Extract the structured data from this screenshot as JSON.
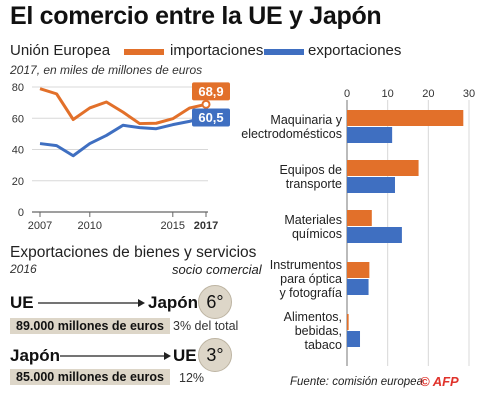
{
  "title": "El comercio entre la UE y Japón",
  "legend": {
    "region": "Unión Europea",
    "imports_label": "importaciones",
    "exports_label": "exportaciones",
    "imports_color": "#e2702a",
    "exports_color": "#3f6fc1"
  },
  "line_subtitle": "2017, en miles de millones de euros",
  "section": {
    "title": "Exportaciones de bienes y servicios",
    "year": "2016",
    "partner_header": "socio comercial"
  },
  "trade_flows": [
    {
      "from": "UE",
      "to": "Japón",
      "rank": "6°",
      "amount": "89.000 millones de euros",
      "share": "3% del total"
    },
    {
      "from": "Japón",
      "to": "UE",
      "rank": "3°",
      "amount": "85.000 millones de euros",
      "share": "12%"
    }
  ],
  "source": "Fuente: comisión europea",
  "logo": "© AFP",
  "chart_data": [
    {
      "type": "line",
      "x": [
        2007,
        2008,
        2009,
        2010,
        2011,
        2012,
        2013,
        2014,
        2015,
        2016,
        2017
      ],
      "xticks": [
        "2007",
        "2010",
        "2015",
        "2017"
      ],
      "yticks": [
        "0",
        "20",
        "40",
        "60",
        "80"
      ],
      "ylim": [
        0,
        80
      ],
      "series": [
        {
          "name": "importaciones",
          "color": "#e2702a",
          "values": [
            78.9,
            75.6,
            59.2,
            66.6,
            70.4,
            63.9,
            56.6,
            56.8,
            59.7,
            66.5,
            68.9
          ],
          "end_label": "68,9"
        },
        {
          "name": "exportaciones",
          "color": "#3f6fc1",
          "values": [
            43.8,
            42.5,
            36.0,
            43.8,
            49.0,
            55.5,
            54.0,
            53.3,
            55.9,
            58.0,
            60.5
          ],
          "end_label": "60,5"
        }
      ]
    },
    {
      "type": "bar",
      "orientation": "horizontal",
      "xticks": [
        "0",
        "10",
        "20",
        "30"
      ],
      "xlim": [
        0,
        30
      ],
      "categories": [
        "Maquinaria y electrodomésticos",
        "Equipos de transporte",
        "Materiales químicos",
        "Instrumentos para óptica y fotografía",
        "Alimentos, bebidas, tabaco"
      ],
      "category_lines": [
        [
          "Maquinaria y",
          "electrodomésticos"
        ],
        [
          "Equipos de",
          "transporte"
        ],
        [
          "Materiales",
          "químicos"
        ],
        [
          "Instrumentos",
          "para óptica",
          "y fotografía"
        ],
        [
          "Alimentos,",
          "bebidas,",
          "tabaco"
        ]
      ],
      "series": [
        {
          "name": "importaciones",
          "color": "#e2702a",
          "values": [
            28.6,
            17.6,
            6.1,
            5.5,
            0.4
          ]
        },
        {
          "name": "exportaciones",
          "color": "#3f6fc1",
          "values": [
            11.1,
            11.8,
            13.5,
            5.3,
            3.2
          ]
        }
      ]
    }
  ]
}
